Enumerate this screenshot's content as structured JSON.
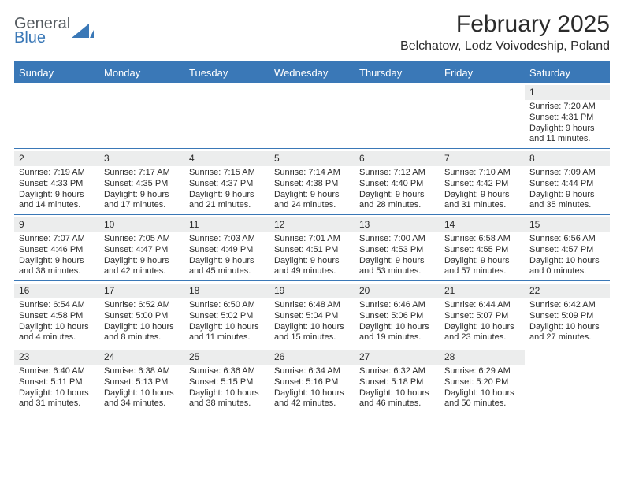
{
  "brand": {
    "top": "General",
    "bottom": "Blue"
  },
  "title": "February 2025",
  "location": "Belchatow, Lodz Voivodeship, Poland",
  "colors": {
    "accent": "#3a78b7",
    "daynum_bg": "#eceded",
    "text": "#2b2b2b",
    "logo_gray": "#555b60",
    "background": "#ffffff"
  },
  "day_headers": [
    "Sunday",
    "Monday",
    "Tuesday",
    "Wednesday",
    "Thursday",
    "Friday",
    "Saturday"
  ],
  "weeks": [
    [
      {
        "day": "",
        "sunrise": "",
        "sunset": "",
        "daylight": ""
      },
      {
        "day": "",
        "sunrise": "",
        "sunset": "",
        "daylight": ""
      },
      {
        "day": "",
        "sunrise": "",
        "sunset": "",
        "daylight": ""
      },
      {
        "day": "",
        "sunrise": "",
        "sunset": "",
        "daylight": ""
      },
      {
        "day": "",
        "sunrise": "",
        "sunset": "",
        "daylight": ""
      },
      {
        "day": "",
        "sunrise": "",
        "sunset": "",
        "daylight": ""
      },
      {
        "day": "1",
        "sunrise": "Sunrise: 7:20 AM",
        "sunset": "Sunset: 4:31 PM",
        "daylight": "Daylight: 9 hours and 11 minutes."
      }
    ],
    [
      {
        "day": "2",
        "sunrise": "Sunrise: 7:19 AM",
        "sunset": "Sunset: 4:33 PM",
        "daylight": "Daylight: 9 hours and 14 minutes."
      },
      {
        "day": "3",
        "sunrise": "Sunrise: 7:17 AM",
        "sunset": "Sunset: 4:35 PM",
        "daylight": "Daylight: 9 hours and 17 minutes."
      },
      {
        "day": "4",
        "sunrise": "Sunrise: 7:15 AM",
        "sunset": "Sunset: 4:37 PM",
        "daylight": "Daylight: 9 hours and 21 minutes."
      },
      {
        "day": "5",
        "sunrise": "Sunrise: 7:14 AM",
        "sunset": "Sunset: 4:38 PM",
        "daylight": "Daylight: 9 hours and 24 minutes."
      },
      {
        "day": "6",
        "sunrise": "Sunrise: 7:12 AM",
        "sunset": "Sunset: 4:40 PM",
        "daylight": "Daylight: 9 hours and 28 minutes."
      },
      {
        "day": "7",
        "sunrise": "Sunrise: 7:10 AM",
        "sunset": "Sunset: 4:42 PM",
        "daylight": "Daylight: 9 hours and 31 minutes."
      },
      {
        "day": "8",
        "sunrise": "Sunrise: 7:09 AM",
        "sunset": "Sunset: 4:44 PM",
        "daylight": "Daylight: 9 hours and 35 minutes."
      }
    ],
    [
      {
        "day": "9",
        "sunrise": "Sunrise: 7:07 AM",
        "sunset": "Sunset: 4:46 PM",
        "daylight": "Daylight: 9 hours and 38 minutes."
      },
      {
        "day": "10",
        "sunrise": "Sunrise: 7:05 AM",
        "sunset": "Sunset: 4:47 PM",
        "daylight": "Daylight: 9 hours and 42 minutes."
      },
      {
        "day": "11",
        "sunrise": "Sunrise: 7:03 AM",
        "sunset": "Sunset: 4:49 PM",
        "daylight": "Daylight: 9 hours and 45 minutes."
      },
      {
        "day": "12",
        "sunrise": "Sunrise: 7:01 AM",
        "sunset": "Sunset: 4:51 PM",
        "daylight": "Daylight: 9 hours and 49 minutes."
      },
      {
        "day": "13",
        "sunrise": "Sunrise: 7:00 AM",
        "sunset": "Sunset: 4:53 PM",
        "daylight": "Daylight: 9 hours and 53 minutes."
      },
      {
        "day": "14",
        "sunrise": "Sunrise: 6:58 AM",
        "sunset": "Sunset: 4:55 PM",
        "daylight": "Daylight: 9 hours and 57 minutes."
      },
      {
        "day": "15",
        "sunrise": "Sunrise: 6:56 AM",
        "sunset": "Sunset: 4:57 PM",
        "daylight": "Daylight: 10 hours and 0 minutes."
      }
    ],
    [
      {
        "day": "16",
        "sunrise": "Sunrise: 6:54 AM",
        "sunset": "Sunset: 4:58 PM",
        "daylight": "Daylight: 10 hours and 4 minutes."
      },
      {
        "day": "17",
        "sunrise": "Sunrise: 6:52 AM",
        "sunset": "Sunset: 5:00 PM",
        "daylight": "Daylight: 10 hours and 8 minutes."
      },
      {
        "day": "18",
        "sunrise": "Sunrise: 6:50 AM",
        "sunset": "Sunset: 5:02 PM",
        "daylight": "Daylight: 10 hours and 11 minutes."
      },
      {
        "day": "19",
        "sunrise": "Sunrise: 6:48 AM",
        "sunset": "Sunset: 5:04 PM",
        "daylight": "Daylight: 10 hours and 15 minutes."
      },
      {
        "day": "20",
        "sunrise": "Sunrise: 6:46 AM",
        "sunset": "Sunset: 5:06 PM",
        "daylight": "Daylight: 10 hours and 19 minutes."
      },
      {
        "day": "21",
        "sunrise": "Sunrise: 6:44 AM",
        "sunset": "Sunset: 5:07 PM",
        "daylight": "Daylight: 10 hours and 23 minutes."
      },
      {
        "day": "22",
        "sunrise": "Sunrise: 6:42 AM",
        "sunset": "Sunset: 5:09 PM",
        "daylight": "Daylight: 10 hours and 27 minutes."
      }
    ],
    [
      {
        "day": "23",
        "sunrise": "Sunrise: 6:40 AM",
        "sunset": "Sunset: 5:11 PM",
        "daylight": "Daylight: 10 hours and 31 minutes."
      },
      {
        "day": "24",
        "sunrise": "Sunrise: 6:38 AM",
        "sunset": "Sunset: 5:13 PM",
        "daylight": "Daylight: 10 hours and 34 minutes."
      },
      {
        "day": "25",
        "sunrise": "Sunrise: 6:36 AM",
        "sunset": "Sunset: 5:15 PM",
        "daylight": "Daylight: 10 hours and 38 minutes."
      },
      {
        "day": "26",
        "sunrise": "Sunrise: 6:34 AM",
        "sunset": "Sunset: 5:16 PM",
        "daylight": "Daylight: 10 hours and 42 minutes."
      },
      {
        "day": "27",
        "sunrise": "Sunrise: 6:32 AM",
        "sunset": "Sunset: 5:18 PM",
        "daylight": "Daylight: 10 hours and 46 minutes."
      },
      {
        "day": "28",
        "sunrise": "Sunrise: 6:29 AM",
        "sunset": "Sunset: 5:20 PM",
        "daylight": "Daylight: 10 hours and 50 minutes."
      },
      {
        "day": "",
        "sunrise": "",
        "sunset": "",
        "daylight": ""
      }
    ]
  ]
}
